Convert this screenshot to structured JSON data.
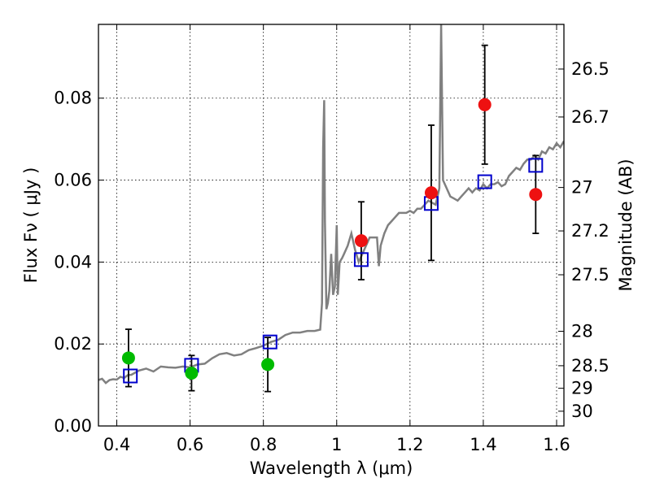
{
  "chart_data": {
    "type": "scatter",
    "xlabel": "Wavelength  λ (μm)",
    "ylabel": "Flux  Fν  ( μJy )",
    "y2label": "Magnitude (AB)",
    "xlim": [
      0.35,
      1.62
    ],
    "ylim": [
      0.0,
      0.098
    ],
    "grid": true,
    "x_ticks": [
      {
        "value": 0.4,
        "label": "0.4"
      },
      {
        "value": 0.6,
        "label": "0.6"
      },
      {
        "value": 0.8,
        "label": "0.8"
      },
      {
        "value": 1.0,
        "label": "1"
      },
      {
        "value": 1.2,
        "label": "1.2"
      },
      {
        "value": 1.4,
        "label": "1.4"
      },
      {
        "value": 1.6,
        "label": "1.6"
      }
    ],
    "y_ticks": [
      {
        "value": 0.0,
        "label": "0.00"
      },
      {
        "value": 0.02,
        "label": "0.02"
      },
      {
        "value": 0.04,
        "label": "0.04"
      },
      {
        "value": 0.06,
        "label": "0.06"
      },
      {
        "value": 0.08,
        "label": "0.08"
      }
    ],
    "y2_ticks": [
      {
        "flux": 0.0871,
        "label": "26.5"
      },
      {
        "flux": 0.0754,
        "label": "26.7"
      },
      {
        "flux": 0.0582,
        "label": "27"
      },
      {
        "flux": 0.0476,
        "label": "27.2"
      },
      {
        "flux": 0.0369,
        "label": "27.5"
      },
      {
        "flux": 0.0231,
        "label": "28"
      },
      {
        "flux": 0.0147,
        "label": "28.5"
      },
      {
        "flux": 0.0092,
        "label": "29"
      },
      {
        "flux": 0.0036,
        "label": "30"
      }
    ],
    "colors": {
      "spectrum": "#808080",
      "model": "#0000cc",
      "detection": "#ee1111",
      "blue_band": "#00bb00",
      "error_bar": "#000000"
    },
    "spectrum": {
      "x": [
        0.35,
        0.36,
        0.37,
        0.38,
        0.39,
        0.4,
        0.41,
        0.42,
        0.43,
        0.44,
        0.46,
        0.48,
        0.5,
        0.52,
        0.54,
        0.56,
        0.58,
        0.6,
        0.62,
        0.64,
        0.66,
        0.68,
        0.7,
        0.72,
        0.74,
        0.76,
        0.78,
        0.8,
        0.82,
        0.84,
        0.86,
        0.88,
        0.9,
        0.92,
        0.94,
        0.955,
        0.96,
        0.963,
        0.966,
        0.968,
        0.972,
        0.976,
        0.98,
        0.985,
        0.99,
        0.995,
        1.0,
        1.003,
        1.008,
        1.015,
        1.02,
        1.03,
        1.04,
        1.05,
        1.06,
        1.07,
        1.08,
        1.09,
        1.1,
        1.11,
        1.115,
        1.12,
        1.13,
        1.14,
        1.15,
        1.16,
        1.17,
        1.18,
        1.19,
        1.2,
        1.21,
        1.22,
        1.23,
        1.24,
        1.25,
        1.26,
        1.27,
        1.28,
        1.285,
        1.29,
        1.3,
        1.31,
        1.32,
        1.33,
        1.34,
        1.35,
        1.36,
        1.37,
        1.38,
        1.39,
        1.4,
        1.41,
        1.42,
        1.43,
        1.44,
        1.45,
        1.46,
        1.47,
        1.48,
        1.49,
        1.5,
        1.51,
        1.52,
        1.53,
        1.54,
        1.55,
        1.56,
        1.57,
        1.58,
        1.59,
        1.6,
        1.61,
        1.62
      ],
      "y": [
        0.0112,
        0.0115,
        0.0105,
        0.0112,
        0.0114,
        0.0113,
        0.012,
        0.0117,
        0.0124,
        0.0125,
        0.0135,
        0.014,
        0.0133,
        0.0145,
        0.0143,
        0.0142,
        0.0145,
        0.0143,
        0.015,
        0.0152,
        0.0165,
        0.0175,
        0.0178,
        0.0172,
        0.0175,
        0.0185,
        0.019,
        0.0196,
        0.0205,
        0.021,
        0.0222,
        0.0228,
        0.0228,
        0.0232,
        0.0232,
        0.0235,
        0.03,
        0.068,
        0.0795,
        0.05,
        0.0285,
        0.03,
        0.033,
        0.042,
        0.032,
        0.034,
        0.049,
        0.032,
        0.04,
        0.041,
        0.042,
        0.044,
        0.047,
        0.043,
        0.04,
        0.042,
        0.044,
        0.046,
        0.046,
        0.046,
        0.039,
        0.044,
        0.047,
        0.049,
        0.05,
        0.051,
        0.052,
        0.052,
        0.052,
        0.0525,
        0.052,
        0.053,
        0.053,
        0.054,
        0.055,
        0.0545,
        0.054,
        0.058,
        0.098,
        0.06,
        0.058,
        0.056,
        0.0555,
        0.055,
        0.056,
        0.057,
        0.058,
        0.057,
        0.058,
        0.0575,
        0.059,
        0.058,
        0.059,
        0.059,
        0.0595,
        0.0585,
        0.059,
        0.061,
        0.062,
        0.063,
        0.0625,
        0.064,
        0.065,
        0.065,
        0.066,
        0.065,
        0.067,
        0.0665,
        0.068,
        0.0675,
        0.069,
        0.068,
        0.0695
      ]
    },
    "model_points": {
      "x": [
        0.437,
        0.604,
        0.818,
        1.067,
        1.258,
        1.404,
        1.543
      ],
      "y": [
        0.0122,
        0.0148,
        0.0205,
        0.0406,
        0.0543,
        0.0596,
        0.0636
      ]
    },
    "detections": {
      "x": [
        1.067,
        1.258,
        1.404,
        1.543
      ],
      "y": [
        0.0452,
        0.0569,
        0.0784,
        0.0565
      ],
      "err": [
        0.0095,
        0.0165,
        0.0145,
        0.0095
      ]
    },
    "blue_bands": {
      "x": [
        0.432,
        0.604,
        0.812
      ],
      "y": [
        0.0166,
        0.0129,
        0.015
      ],
      "err": [
        0.007,
        0.0043,
        0.0066
      ]
    }
  }
}
